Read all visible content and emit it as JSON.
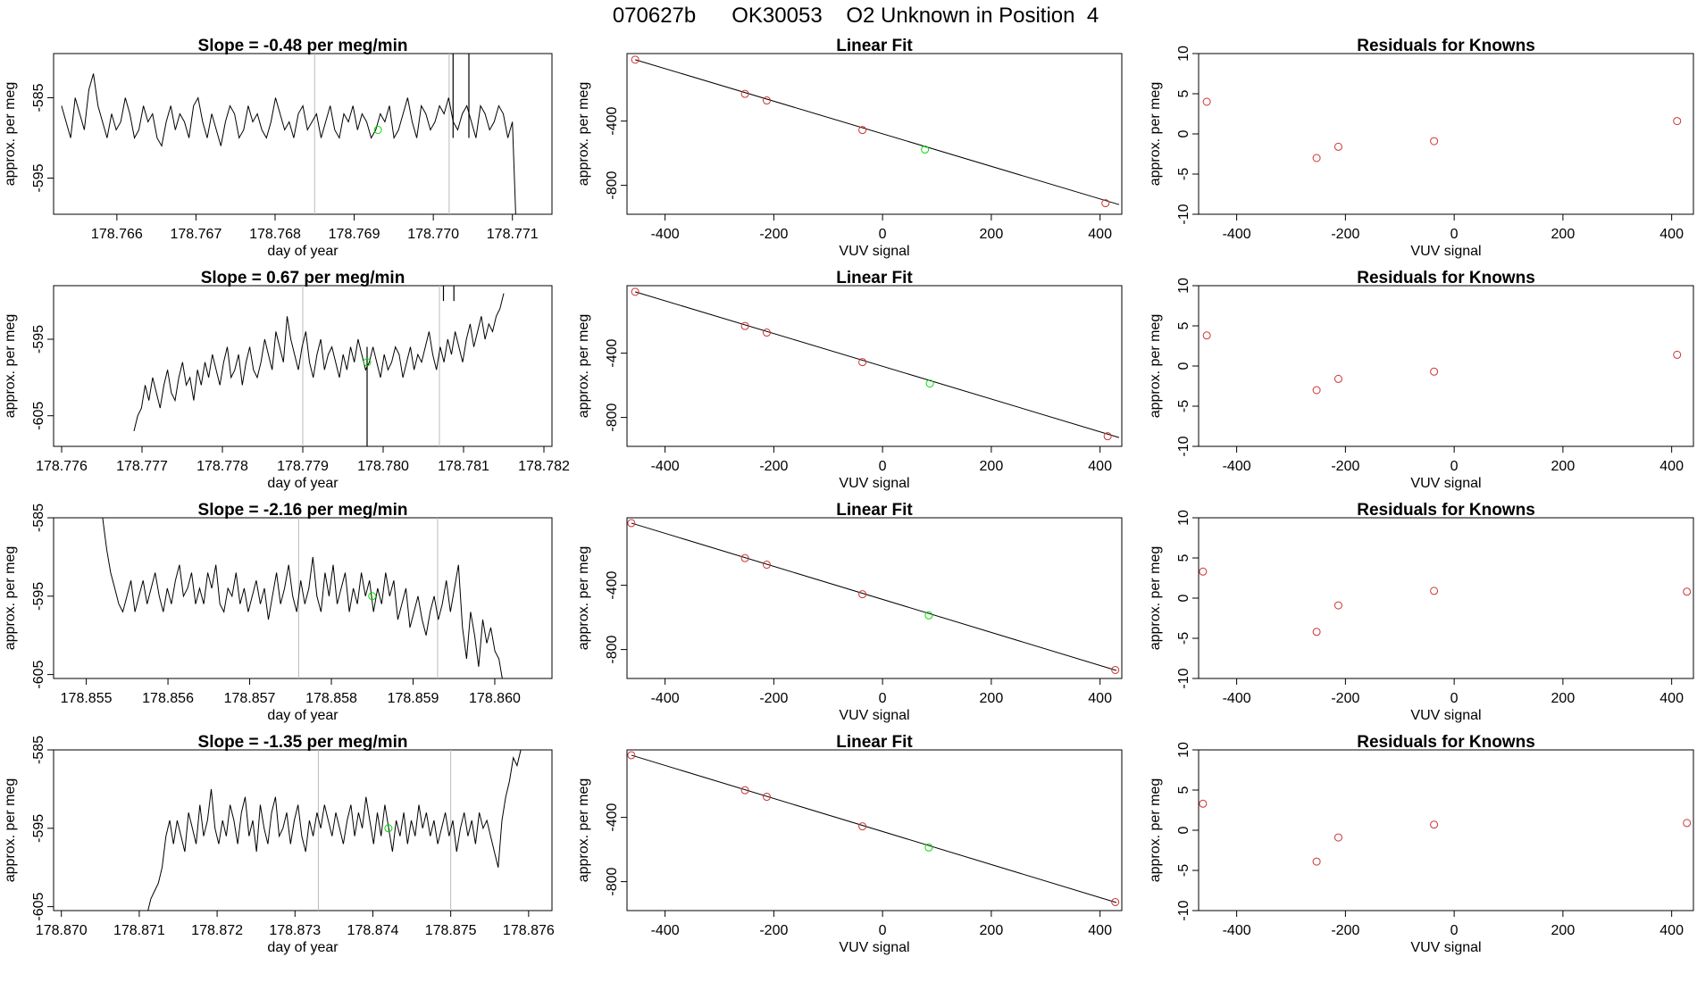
{
  "header": {
    "title": "070627b      OK30053    O2 Unknown in Position  4"
  },
  "chart_data": [
    {
      "type": "line",
      "panel": "time-trace",
      "row": 1,
      "title": "Slope =  -0.48  per meg/min",
      "xlabel": "day of year",
      "ylabel": "approx. per meg",
      "xlim": [
        178.7652,
        178.7715
      ],
      "ylim": [
        -599.5,
        -579.5
      ],
      "xticks": [
        178.766,
        178.767,
        178.768,
        178.769,
        178.77,
        178.771
      ],
      "xtick_labels": [
        "178.766",
        "178.767",
        "178.768",
        "178.769",
        "178.770",
        "178.771"
      ],
      "yticks": [
        -585,
        -595
      ],
      "ytick_labels": [
        "-585",
        "-595"
      ],
      "vlines": [
        178.7685,
        178.7702
      ],
      "marker": {
        "x": 178.7693,
        "y": -589,
        "color": "#00dd00"
      },
      "series": [
        {
          "x_start": 178.7653,
          "x_end": 178.771,
          "y_clip_high": -579.5,
          "y_clip_low": -599.5,
          "spikes": [
            178.77025,
            178.77045
          ],
          "end_drop": true,
          "values": [
            -586,
            -588,
            -590,
            -585,
            -587,
            -589,
            -584,
            -582,
            -586,
            -588,
            -590,
            -587,
            -589,
            -588,
            -585,
            -587,
            -590,
            -589,
            -586,
            -588,
            -587,
            -590,
            -591,
            -588,
            -586,
            -589,
            -587,
            -588,
            -590,
            -586,
            -585,
            -588,
            -590,
            -587,
            -589,
            -591,
            -588,
            -586,
            -587,
            -590,
            -589,
            -586,
            -588,
            -587,
            -589,
            -590,
            -588,
            -585,
            -587,
            -589,
            -588,
            -590,
            -587,
            -586,
            -589,
            -588,
            -587,
            -590,
            -588,
            -586,
            -589,
            -590,
            -587,
            -588,
            -586,
            -589,
            -587,
            -588,
            -590,
            -589,
            -587,
            -588,
            -586,
            -590,
            -589,
            -587,
            -585,
            -588,
            -590,
            -586,
            -587,
            -589,
            -588,
            -586,
            -587,
            -585,
            -588,
            -589,
            -587,
            -586,
            -588,
            -590,
            -586,
            -587,
            -589,
            -588,
            -586,
            -587,
            -590,
            -588
          ]
        }
      ]
    },
    {
      "type": "line",
      "panel": "linear-fit",
      "row": 1,
      "title": "Linear Fit",
      "xlabel": "VUV signal",
      "ylabel": "approx. per meg",
      "xlim": [
        -470,
        440
      ],
      "ylim": [
        -980,
        20
      ],
      "xticks": [
        -400,
        -200,
        0,
        200,
        400
      ],
      "xtick_labels": [
        "-400",
        "-200",
        "0",
        "200",
        "400"
      ],
      "yticks": [
        -400,
        -800
      ],
      "ytick_labels": [
        "-400",
        "-800"
      ],
      "fit_line": {
        "x": [
          -455,
          435
        ],
        "y": [
          -18,
          -920
        ]
      },
      "knowns": {
        "x": [
          -455,
          -253,
          -213,
          -37,
          410
        ],
        "y": [
          -18,
          -231,
          -272,
          -456,
          -911
        ],
        "color": "#cc3333"
      },
      "unknown": {
        "x": 78,
        "y": -577,
        "color": "#00dd00"
      }
    },
    {
      "type": "scatter",
      "panel": "residuals",
      "row": 1,
      "title": "Residuals for Knowns",
      "xlabel": "VUV signal",
      "ylabel": "approx. per meg",
      "xlim": [
        -470,
        440
      ],
      "ylim": [
        -10,
        10
      ],
      "xticks": [
        -400,
        -200,
        0,
        200,
        400
      ],
      "xtick_labels": [
        "-400",
        "-200",
        "0",
        "200",
        "400"
      ],
      "yticks": [
        10,
        5,
        0,
        -5,
        -10
      ],
      "ytick_labels": [
        "10",
        "5",
        "0",
        "-5",
        "-10"
      ],
      "points": {
        "x": [
          -455,
          -253,
          -213,
          -37,
          410
        ],
        "y": [
          4.0,
          -3.0,
          -1.6,
          -0.9,
          1.6
        ],
        "color": "#cc3333"
      }
    },
    {
      "type": "line",
      "panel": "time-trace",
      "row": 2,
      "title": "Slope =  0.67  per meg/min",
      "xlabel": "day of year",
      "ylabel": "approx. per meg",
      "xlim": [
        178.7759,
        178.7821
      ],
      "ylim": [
        -609,
        -588
      ],
      "xticks": [
        178.776,
        178.777,
        178.778,
        178.779,
        178.78,
        178.781,
        178.782
      ],
      "xtick_labels": [
        "178.776",
        "178.777",
        "178.778",
        "178.779",
        "178.780",
        "178.781",
        "178.782"
      ],
      "yticks": [
        -595,
        -605
      ],
      "ytick_labels": [
        "-595",
        "-605"
      ],
      "vlines": [
        178.779,
        178.7807
      ],
      "marker": {
        "x": 178.7798,
        "y": -598,
        "color": "#00dd00"
      },
      "series": [
        {
          "x_start": 178.7769,
          "x_end": 178.7815,
          "y_clip_high": -588,
          "y_clip_low": -609,
          "spikes": [
            178.78075,
            178.78088
          ],
          "dips": [
            178.7798
          ],
          "values": [
            -607,
            -605,
            -604,
            -601,
            -603,
            -600,
            -602,
            -604,
            -601,
            -599,
            -602,
            -603,
            -600,
            -598,
            -601,
            -600,
            -603,
            -599,
            -601,
            -598,
            -600,
            -597,
            -599,
            -601,
            -598,
            -596,
            -600,
            -599,
            -597,
            -601,
            -598,
            -596,
            -599,
            -600,
            -598,
            -595,
            -597,
            -599,
            -594,
            -596,
            -598,
            -592,
            -595,
            -597,
            -599,
            -596,
            -594,
            -598,
            -600,
            -597,
            -595,
            -599,
            -597,
            -596,
            -598,
            -600,
            -597,
            -599,
            -596,
            -598,
            -595,
            -597,
            -599,
            -598,
            -596,
            -598,
            -600,
            -597,
            -599,
            -598,
            -596,
            -597,
            -600,
            -598,
            -596,
            -599,
            -597,
            -598,
            -596,
            -594,
            -597,
            -599,
            -596,
            -598,
            -595,
            -597,
            -594,
            -596,
            -598,
            -595,
            -593,
            -596,
            -594,
            -592,
            -595,
            -593,
            -594,
            -592,
            -591,
            -589
          ]
        }
      ]
    },
    {
      "type": "line",
      "panel": "linear-fit",
      "row": 2,
      "title": "Linear Fit",
      "xlabel": "VUV signal",
      "ylabel": "approx. per meg",
      "xlim": [
        -470,
        440
      ],
      "ylim": [
        -980,
        20
      ],
      "xticks": [
        -400,
        -200,
        0,
        200,
        400
      ],
      "xtick_labels": [
        "-400",
        "-200",
        "0",
        "200",
        "400"
      ],
      "yticks": [
        -400,
        -800
      ],
      "ytick_labels": [
        "-400",
        "-800"
      ],
      "fit_line": {
        "x": [
          -455,
          435
        ],
        "y": [
          -18,
          -925
        ]
      },
      "knowns": {
        "x": [
          -455,
          -253,
          -213,
          -37,
          414
        ],
        "y": [
          -18,
          -231,
          -272,
          -456,
          -917
        ],
        "color": "#cc3333"
      },
      "unknown": {
        "x": 87,
        "y": -589,
        "color": "#00dd00"
      }
    },
    {
      "type": "scatter",
      "panel": "residuals",
      "row": 2,
      "title": "Residuals for Knowns",
      "xlabel": "VUV signal",
      "ylabel": "approx. per meg",
      "xlim": [
        -470,
        440
      ],
      "ylim": [
        -10,
        10
      ],
      "xticks": [
        -400,
        -200,
        0,
        200,
        400
      ],
      "xtick_labels": [
        "-400",
        "-200",
        "0",
        "200",
        "400"
      ],
      "yticks": [
        10,
        5,
        0,
        -5,
        -10
      ],
      "ytick_labels": [
        "10",
        "5",
        "0",
        "-5",
        "-10"
      ],
      "points": {
        "x": [
          -455,
          -253,
          -213,
          -37,
          410
        ],
        "y": [
          3.8,
          -3.0,
          -1.6,
          -0.7,
          1.4
        ],
        "color": "#cc3333"
      }
    },
    {
      "type": "line",
      "panel": "time-trace",
      "row": 3,
      "title": "Slope =  -2.16  per meg/min",
      "xlabel": "day of year",
      "ylabel": "approx. per meg",
      "xlim": [
        178.8546,
        178.8607
      ],
      "ylim": [
        -605.5,
        -585
      ],
      "xticks": [
        178.855,
        178.856,
        178.857,
        178.858,
        178.859,
        178.86
      ],
      "xtick_labels": [
        "178.855",
        "178.856",
        "178.857",
        "178.858",
        "178.859",
        "178.860"
      ],
      "yticks": [
        -585,
        -595,
        -605
      ],
      "ytick_labels": [
        "-585",
        "-595",
        "-605"
      ],
      "vlines": [
        178.8576,
        178.8593
      ],
      "marker": {
        "x": 178.8585,
        "y": -595,
        "color": "#00dd00"
      },
      "series": [
        {
          "x_start": 178.8552,
          "x_end": 178.8601,
          "y_clip_high": -585,
          "y_clip_low": -605.5,
          "values": [
            -585,
            -589,
            -592,
            -594,
            -596,
            -597,
            -595,
            -593,
            -597,
            -595,
            -593,
            -596,
            -594,
            -592,
            -595,
            -597,
            -594,
            -596,
            -593,
            -591,
            -595,
            -594,
            -592,
            -596,
            -594,
            -596,
            -592,
            -594,
            -591,
            -596,
            -597,
            -594,
            -595,
            -592,
            -596,
            -594,
            -597,
            -595,
            -593,
            -596,
            -594,
            -598,
            -595,
            -592,
            -596,
            -594,
            -591,
            -595,
            -597,
            -593,
            -596,
            -594,
            -590,
            -595,
            -597,
            -592,
            -595,
            -591,
            -596,
            -594,
            -592,
            -597,
            -594,
            -596,
            -592,
            -595,
            -593,
            -597,
            -594,
            -596,
            -592,
            -595,
            -593,
            -598,
            -596,
            -594,
            -599,
            -597,
            -595,
            -598,
            -600,
            -597,
            -595,
            -598,
            -596,
            -593,
            -597,
            -594,
            -591,
            -599,
            -603,
            -597,
            -600,
            -604,
            -598,
            -601,
            -599,
            -602,
            -603,
            -606
          ]
        }
      ]
    },
    {
      "type": "line",
      "panel": "linear-fit",
      "row": 3,
      "title": "Linear Fit",
      "xlabel": "VUV signal",
      "ylabel": "approx. per meg",
      "xlim": [
        -470,
        440
      ],
      "ylim": [
        -980,
        20
      ],
      "xticks": [
        -400,
        -200,
        0,
        200,
        400
      ],
      "xtick_labels": [
        "-400",
        "-200",
        "0",
        "200",
        "400"
      ],
      "yticks": [
        -400,
        -800
      ],
      "ytick_labels": [
        "-400",
        "-800"
      ],
      "fit_line": {
        "x": [
          -462,
          430
        ],
        "y": [
          -13,
          -930
        ]
      },
      "knowns": {
        "x": [
          -462,
          -253,
          -213,
          -37,
          428
        ],
        "y": [
          -13,
          -231,
          -272,
          -456,
          -927
        ],
        "color": "#cc3333"
      },
      "unknown": {
        "x": 85,
        "y": -587,
        "color": "#00dd00"
      }
    },
    {
      "type": "scatter",
      "panel": "residuals",
      "row": 3,
      "title": "Residuals for Knowns",
      "xlabel": "VUV signal",
      "ylabel": "approx. per meg",
      "xlim": [
        -470,
        440
      ],
      "ylim": [
        -10,
        10
      ],
      "xticks": [
        -400,
        -200,
        0,
        200,
        400
      ],
      "xtick_labels": [
        "-400",
        "-200",
        "0",
        "200",
        "400"
      ],
      "yticks": [
        10,
        5,
        0,
        -5,
        -10
      ],
      "ytick_labels": [
        "10",
        "5",
        "0",
        "-5",
        "-10"
      ],
      "points": {
        "x": [
          -462,
          -253,
          -213,
          -37,
          428
        ],
        "y": [
          3.3,
          -4.2,
          -0.9,
          0.9,
          0.8
        ],
        "color": "#cc3333"
      }
    },
    {
      "type": "line",
      "panel": "time-trace",
      "row": 4,
      "title": "Slope =  -1.35  per meg/min",
      "xlabel": "day of year",
      "ylabel": "approx. per meg",
      "xlim": [
        178.8699,
        178.8763
      ],
      "ylim": [
        -605.5,
        -585
      ],
      "xticks": [
        178.87,
        178.871,
        178.872,
        178.873,
        178.874,
        178.875,
        178.876
      ],
      "xtick_labels": [
        "178.870",
        "178.871",
        "178.872",
        "178.873",
        "178.874",
        "178.875",
        "178.876"
      ],
      "yticks": [
        -585,
        -595,
        -605
      ],
      "ytick_labels": [
        "-585",
        "-595",
        "-605"
      ],
      "vlines": [
        178.8733,
        178.875
      ],
      "marker": {
        "x": 178.8742,
        "y": -595,
        "color": "#00dd00"
      },
      "series": [
        {
          "x_start": 178.8711,
          "x_end": 178.8759,
          "y_clip_high": -585,
          "y_clip_low": -605.5,
          "values": [
            -606,
            -604,
            -603,
            -602,
            -600,
            -596,
            -594,
            -597,
            -594,
            -596,
            -598,
            -593,
            -595,
            -597,
            -592,
            -596,
            -594,
            -590,
            -595,
            -597,
            -594,
            -596,
            -592,
            -594,
            -597,
            -593,
            -591,
            -596,
            -594,
            -598,
            -592,
            -595,
            -597,
            -593,
            -591,
            -596,
            -595,
            -593,
            -597,
            -594,
            -592,
            -596,
            -598,
            -594,
            -596,
            -593,
            -595,
            -592,
            -594,
            -596,
            -593,
            -595,
            -597,
            -594,
            -592,
            -596,
            -593,
            -595,
            -591,
            -594,
            -597,
            -593,
            -596,
            -592,
            -595,
            -598,
            -594,
            -596,
            -593,
            -597,
            -594,
            -596,
            -592,
            -595,
            -593,
            -596,
            -594,
            -597,
            -595,
            -593,
            -596,
            -594,
            -598,
            -595,
            -593,
            -596,
            -594,
            -597,
            -593,
            -595,
            -594,
            -596,
            -598,
            -600,
            -594,
            -591,
            -589,
            -586,
            -587,
            -585
          ]
        }
      ]
    },
    {
      "type": "line",
      "panel": "linear-fit",
      "row": 4,
      "title": "Linear Fit",
      "xlabel": "VUV signal",
      "ylabel": "approx. per meg",
      "xlim": [
        -470,
        440
      ],
      "ylim": [
        -980,
        20
      ],
      "xticks": [
        -400,
        -200,
        0,
        200,
        400
      ],
      "xtick_labels": [
        "-400",
        "-200",
        "0",
        "200",
        "400"
      ],
      "yticks": [
        -400,
        -800
      ],
      "ytick_labels": [
        "-400",
        "-800"
      ],
      "fit_line": {
        "x": [
          -462,
          430
        ],
        "y": [
          -13,
          -930
        ]
      },
      "knowns": {
        "x": [
          -462,
          -253,
          -213,
          -37,
          428
        ],
        "y": [
          -13,
          -231,
          -272,
          -456,
          -927
        ],
        "color": "#cc3333"
      },
      "unknown": {
        "x": 85,
        "y": -587,
        "color": "#00dd00"
      }
    },
    {
      "type": "scatter",
      "panel": "residuals",
      "row": 4,
      "title": "Residuals for Knowns",
      "xlabel": "VUV signal",
      "ylabel": "approx. per meg",
      "xlim": [
        -470,
        440
      ],
      "ylim": [
        -10,
        10
      ],
      "xticks": [
        -400,
        -200,
        0,
        200,
        400
      ],
      "xtick_labels": [
        "-400",
        "-200",
        "0",
        "200",
        "400"
      ],
      "yticks": [
        10,
        5,
        0,
        -5,
        -10
      ],
      "ytick_labels": [
        "10",
        "5",
        "0",
        "-5",
        "-10"
      ],
      "points": {
        "x": [
          -462,
          -253,
          -213,
          -37,
          428
        ],
        "y": [
          3.3,
          -3.9,
          -0.9,
          0.7,
          0.9
        ],
        "color": "#cc3333"
      }
    }
  ]
}
